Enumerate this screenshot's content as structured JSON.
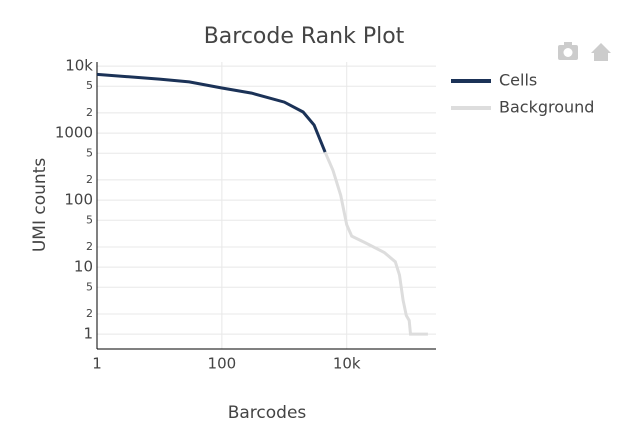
{
  "chart_data": {
    "type": "line",
    "title": "Barcode Rank Plot",
    "x_label": "Barcodes",
    "y_label": "UMI counts",
    "xscale": "log",
    "yscale": "log",
    "grid": true,
    "legend": "outside-right",
    "xlim": [
      1,
      250000
    ],
    "ylim": [
      0.6,
      11500
    ],
    "xticks": [
      1,
      100,
      {
        "value": 10000,
        "label": "10k"
      }
    ],
    "yticks": [
      {
        "value": 10000,
        "label": "10k"
      },
      {
        "value": 5000,
        "label": "5"
      },
      {
        "value": 2000,
        "label": "2"
      },
      1000,
      {
        "value": 500,
        "label": "5"
      },
      {
        "value": 200,
        "label": "2"
      },
      100,
      {
        "value": 50,
        "label": "5"
      },
      {
        "value": 20,
        "label": "2"
      },
      10,
      5,
      2,
      1
    ],
    "series": [
      {
        "name": "Cells",
        "color": "#1b3257",
        "x": [
          1,
          10,
          30,
          100,
          300,
          1000,
          2000,
          3000,
          4500
        ],
        "values": [
          7500,
          6400,
          5800,
          4700,
          3950,
          2900,
          2060,
          1320,
          520
        ]
      },
      {
        "name": "Background",
        "color": "#dddddd",
        "x": [
          4500,
          6000,
          8000,
          10000,
          12000,
          20000,
          40000,
          60000,
          70000,
          80000,
          90000,
          100000,
          105000,
          200000
        ],
        "values": [
          520,
          280,
          118,
          43,
          29,
          23,
          16.5,
          12,
          7.6,
          3.2,
          1.9,
          1.6,
          1,
          1
        ]
      }
    ]
  }
}
